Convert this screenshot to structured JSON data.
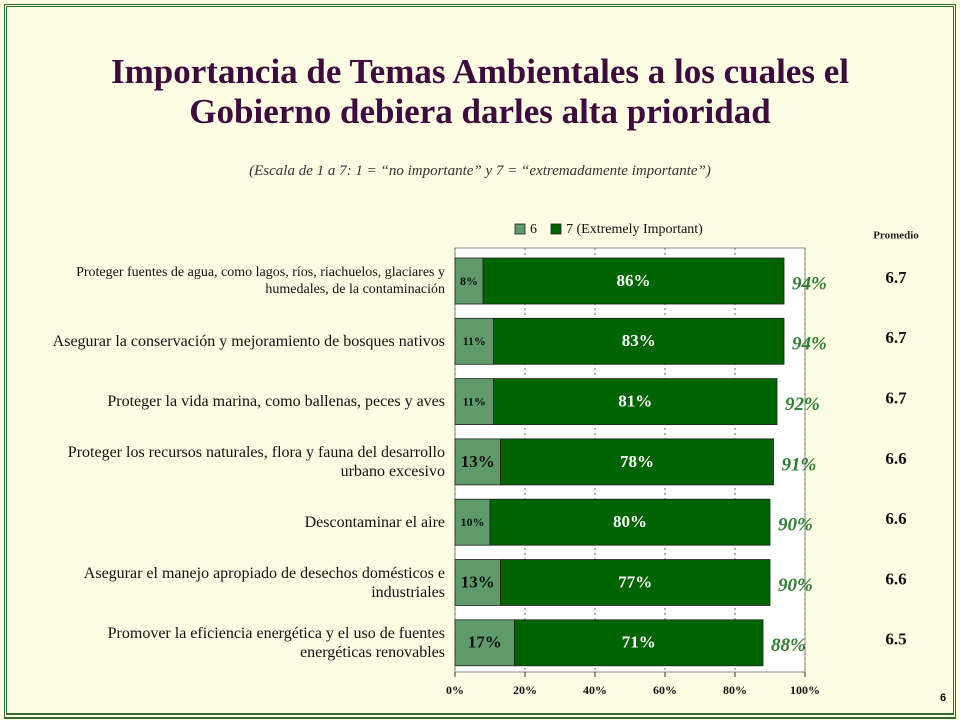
{
  "page_number": "6",
  "chart_data": {
    "type": "stacked_bar",
    "title": "Importancia de Temas Ambientales a los cuales el Gobierno debiera darles alta prioridad",
    "subtitle": "(Escala de 1 a 7: 1 = “no importante” y 7 = “extremadamente importante”)",
    "categories": [
      "Proteger fuentes de agua, como lagos, ríos, riachuelos, glaciares y humedales, de la contaminación",
      "Asegurar la conservación y mejoramiento de bosques nativos",
      "Proteger la vida marina, como ballenas, peces y aves",
      "Proteger los recursos naturales, flora y fauna del desarrollo urbano excesivo",
      "Descontaminar el aire",
      "Asegurar el manejo apropiado de desechos domésticos e industriales",
      "Promover la eficiencia energética y el uso de fuentes energéticas renovables"
    ],
    "series": [
      {
        "name": "6",
        "color": "#5f9a6a",
        "values": [
          8,
          11,
          11,
          13,
          10,
          13,
          17
        ],
        "value_labels": [
          "8%",
          "11%",
          "11%",
          "13%",
          "10%",
          "13%",
          "17%"
        ]
      },
      {
        "name": "7 (Extremely Important)",
        "color": "#006400",
        "values": [
          86,
          83,
          81,
          78,
          80,
          77,
          71
        ],
        "value_labels": [
          "86%",
          "83%",
          "81%",
          "78%",
          "80%",
          "77%",
          "71%"
        ]
      }
    ],
    "totals": {
      "values": [
        94,
        94,
        92,
        91,
        90,
        90,
        88
      ],
      "value_labels": [
        "94%",
        "94%",
        "92%",
        "91%",
        "90%",
        "90%",
        "88%"
      ],
      "color": "#2e7d32"
    },
    "average": {
      "label": "Promedio",
      "values": [
        6.7,
        6.7,
        6.7,
        6.6,
        6.6,
        6.6,
        6.5
      ]
    },
    "xlim": [
      0,
      100
    ],
    "xticks": [
      {
        "value": 0,
        "label": "0%"
      },
      {
        "value": 20,
        "label": "20%"
      },
      {
        "value": 40,
        "label": "40%"
      },
      {
        "value": 60,
        "label": "60%"
      },
      {
        "value": 80,
        "label": "80%"
      },
      {
        "value": 100,
        "label": "100%"
      }
    ],
    "grid": true
  }
}
